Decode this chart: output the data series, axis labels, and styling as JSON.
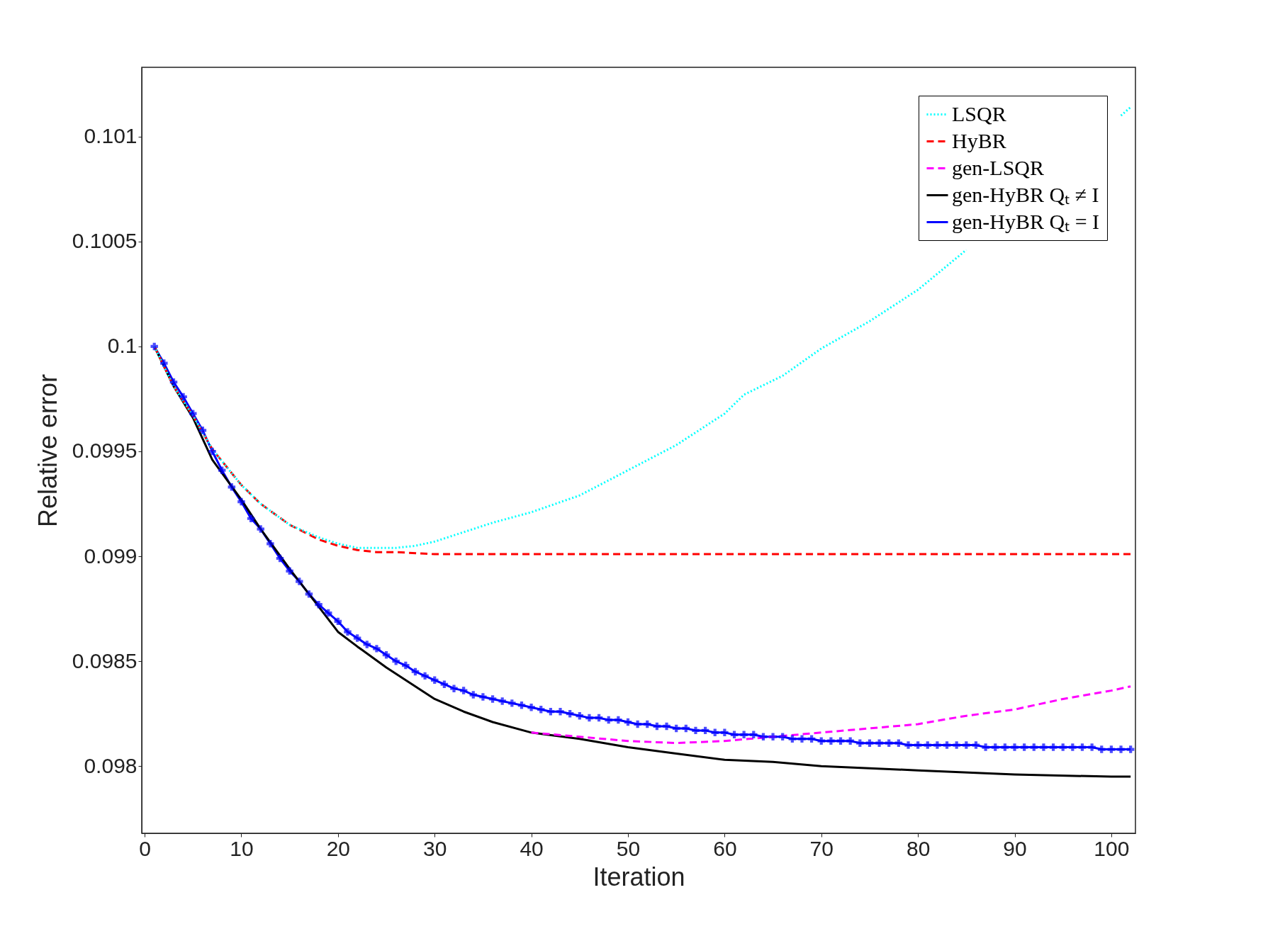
{
  "chart_data": {
    "type": "line",
    "xlabel": "Iteration",
    "ylabel": "Relative error",
    "xlim": [
      -0.3,
      102.5
    ],
    "ylim": [
      0.09768,
      0.10133
    ],
    "xticks": [
      0,
      10,
      20,
      30,
      40,
      50,
      60,
      70,
      80,
      90,
      100
    ],
    "yticks": [
      0.098,
      0.0985,
      0.099,
      0.0995,
      0.1,
      0.1005,
      0.101
    ],
    "grid": false,
    "legend": "top right",
    "x": [
      1,
      2,
      3,
      4,
      5,
      6,
      7,
      8,
      9,
      10,
      11,
      12,
      13,
      14,
      15,
      16,
      17,
      18,
      19,
      20,
      21,
      22,
      23,
      24,
      25,
      26,
      27,
      28,
      29,
      30,
      31,
      32,
      33,
      34,
      35,
      36,
      37,
      38,
      39,
      40,
      41,
      42,
      43,
      44,
      45,
      46,
      47,
      48,
      49,
      50,
      51,
      52,
      53,
      54,
      55,
      56,
      57,
      58,
      59,
      60,
      61,
      62,
      63,
      64,
      65,
      66,
      67,
      68,
      69,
      70,
      71,
      72,
      73,
      74,
      75,
      76,
      77,
      78,
      79,
      80,
      81,
      82,
      83,
      84,
      85,
      86,
      87,
      88,
      89,
      90,
      91,
      92,
      93,
      94,
      95,
      96,
      97,
      98,
      99,
      100,
      101,
      102
    ],
    "series": [
      {
        "name": "LSQR",
        "color": "#00ffff",
        "line_style": "dotted",
        "marker": "none",
        "x": [
          1,
          3,
          5,
          7,
          10,
          12,
          15,
          18,
          20,
          22,
          24,
          26,
          28,
          30,
          32,
          36,
          40,
          45,
          50,
          55,
          60,
          62,
          66,
          70,
          75,
          80,
          85,
          90,
          95,
          101,
          102
        ],
        "values": [
          0.1,
          0.09981,
          0.09967,
          0.09951,
          0.09934,
          0.09925,
          0.09915,
          0.09909,
          0.09906,
          0.09904,
          0.09904,
          0.09904,
          0.09905,
          0.09907,
          0.0991,
          0.09916,
          0.09921,
          0.09929,
          0.09941,
          0.09953,
          0.09968,
          0.09977,
          0.09986,
          0.09999,
          0.10012,
          0.10027,
          0.10046,
          null,
          null,
          0.1011,
          0.10114
        ]
      },
      {
        "name": "HyBR",
        "color": "#ff0000",
        "line_style": "dashed",
        "marker": "none",
        "x": [
          1,
          3,
          5,
          7,
          10,
          12,
          15,
          18,
          20,
          22,
          24,
          26,
          30,
          35,
          40,
          50,
          60,
          70,
          80,
          90,
          100,
          102
        ],
        "values": [
          0.1,
          0.09981,
          0.09967,
          0.09951,
          0.09934,
          0.09925,
          0.09915,
          0.09908,
          0.09905,
          0.09903,
          0.09902,
          0.09902,
          0.09901,
          0.09901,
          0.09901,
          0.09901,
          0.09901,
          0.09901,
          0.09901,
          0.09901,
          0.09901,
          0.09901
        ]
      },
      {
        "name": "gen-LSQR",
        "color": "#ff00ff",
        "line_style": "dashed",
        "marker": "none",
        "x": [
          40,
          45,
          50,
          55,
          60,
          65,
          70,
          75,
          80,
          85,
          90,
          95,
          100,
          102
        ],
        "values": [
          0.09816,
          0.09814,
          0.09812,
          0.09811,
          0.09812,
          0.09814,
          0.09816,
          0.09818,
          0.0982,
          0.09824,
          0.09827,
          0.09832,
          0.09836,
          0.09838
        ]
      },
      {
        "name": "gen-HyBR Qₜ ≠ I",
        "color": "#000000",
        "line_style": "solid",
        "marker": "none",
        "x": [
          1,
          3,
          5,
          7,
          10,
          12,
          15,
          18,
          20,
          22,
          25,
          30,
          33,
          36,
          40,
          45,
          50,
          55,
          60,
          65,
          70,
          75,
          80,
          90,
          100,
          102
        ],
        "values": [
          0.1,
          0.09981,
          0.09966,
          0.09946,
          0.09927,
          0.09913,
          0.09894,
          0.09876,
          0.09864,
          0.09857,
          0.09847,
          0.09832,
          0.09826,
          0.09821,
          0.09816,
          0.09813,
          0.09809,
          0.09806,
          0.09803,
          0.09802,
          0.098,
          0.09799,
          0.09798,
          0.09796,
          0.09795,
          0.09795
        ]
      },
      {
        "name": "gen-HyBR Qₜ = I",
        "color": "#0000ff",
        "line_style": "solid",
        "marker": "cross",
        "values": [
          0.1,
          0.09992,
          0.09983,
          0.09976,
          0.09968,
          0.0996,
          0.0995,
          0.09941,
          0.09933,
          0.09926,
          0.09918,
          0.09913,
          0.09906,
          0.09899,
          0.09893,
          0.09888,
          0.09882,
          0.09877,
          0.09873,
          0.09869,
          0.09864,
          0.09861,
          0.09858,
          0.09856,
          0.09853,
          0.0985,
          0.09848,
          0.09845,
          0.09843,
          0.09841,
          0.09839,
          0.09837,
          0.09836,
          0.09834,
          0.09833,
          0.09832,
          0.09831,
          0.0983,
          0.09829,
          0.09828,
          0.09827,
          0.09826,
          0.09826,
          0.09825,
          0.09824,
          0.09823,
          0.09823,
          0.09822,
          0.09822,
          0.09821,
          0.0982,
          0.0982,
          0.09819,
          0.09819,
          0.09818,
          0.09818,
          0.09817,
          0.09817,
          0.09816,
          0.09816,
          0.09815,
          0.09815,
          0.09815,
          0.09814,
          0.09814,
          0.09814,
          0.09813,
          0.09813,
          0.09813,
          0.09812,
          0.09812,
          0.09812,
          0.09812,
          0.09811,
          0.09811,
          0.09811,
          0.09811,
          0.09811,
          0.0981,
          0.0981,
          0.0981,
          0.0981,
          0.0981,
          0.0981,
          0.0981,
          0.0981,
          0.09809,
          0.09809,
          0.09809,
          0.09809,
          0.09809,
          0.09809,
          0.09809,
          0.09809,
          0.09809,
          0.09809,
          0.09809,
          0.09809,
          0.09808,
          0.09808,
          0.09808,
          0.09808
        ]
      }
    ]
  }
}
